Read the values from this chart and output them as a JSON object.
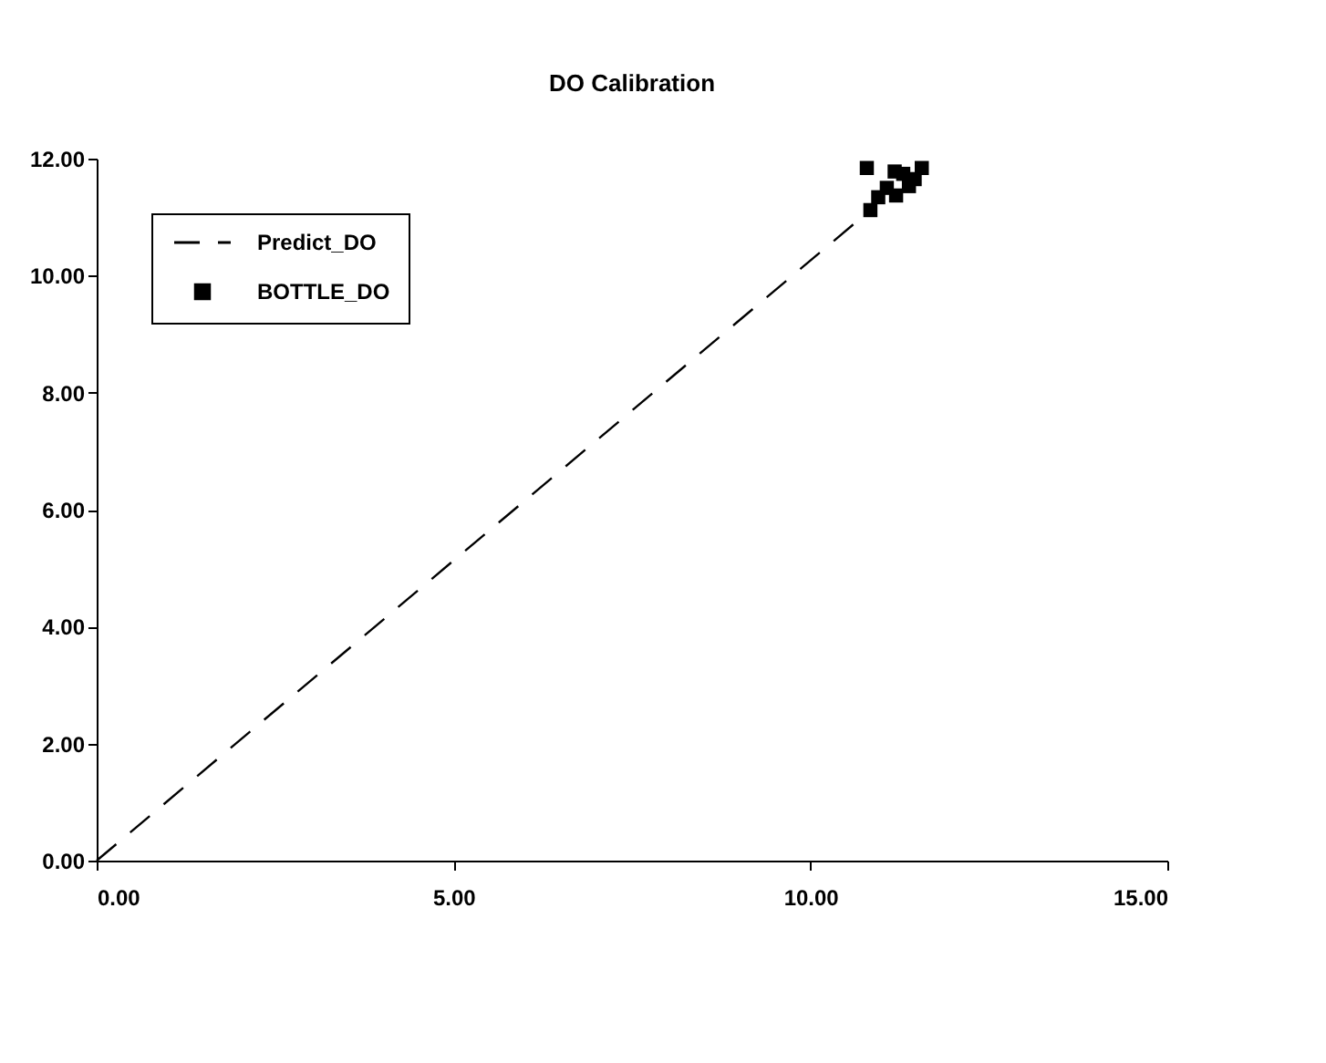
{
  "chart_data": {
    "type": "scatter",
    "title": "DO Calibration",
    "xlim": [
      0,
      15
    ],
    "xticks": [
      {
        "value": 0,
        "label": "0.00"
      },
      {
        "value": 5,
        "label": "5.00"
      },
      {
        "value": 10,
        "label": "10.00"
      },
      {
        "value": 15,
        "label": "15.00"
      }
    ],
    "ylim": [
      0,
      12
    ],
    "yticks": [
      {
        "value": 0,
        "label": "0.00"
      },
      {
        "value": 2,
        "label": "2.00"
      },
      {
        "value": 4,
        "label": "4.00"
      },
      {
        "value": 6,
        "label": "6.00"
      },
      {
        "value": 8,
        "label": "8.00"
      },
      {
        "value": 10,
        "label": "10.00"
      },
      {
        "value": 12,
        "label": "12.00"
      }
    ],
    "grid": false,
    "legend": "top left",
    "series": [
      {
        "name": "Predict_DO",
        "type": "line",
        "line_style": "dashed",
        "marker": "none",
        "color": "#000000",
        "x": [
          0,
          10.84
        ],
        "values": [
          0,
          11.12
        ]
      },
      {
        "name": "BOTTLE_DO",
        "type": "scatter",
        "marker": "square",
        "color": "#000000",
        "x": [
          10.79,
          10.84,
          11.56,
          11.18,
          11.3,
          11.07,
          11.2,
          11.38,
          11.46,
          10.95
        ],
        "values": [
          11.84,
          11.12,
          11.84,
          11.78,
          11.74,
          11.5,
          11.37,
          11.53,
          11.65,
          11.34
        ]
      }
    ]
  }
}
